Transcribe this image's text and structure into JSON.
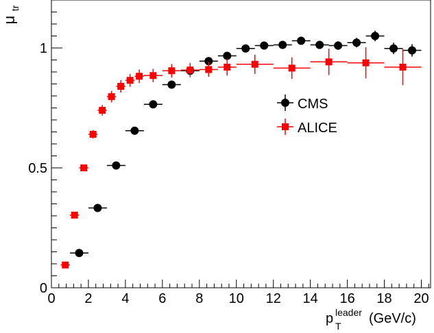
{
  "chart_data": {
    "type": "scatter",
    "xlim": [
      0,
      20.5
    ],
    "ylim": [
      0,
      1.2
    ],
    "x_ticks": [
      0,
      2,
      4,
      6,
      8,
      10,
      12,
      14,
      16,
      18,
      20
    ],
    "y_ticks": [
      0,
      0.5,
      1
    ],
    "xlabel": {
      "main": "p",
      "sub": "T",
      "sup": "leader",
      "unit": "(GeV/c)"
    },
    "ylabel": {
      "main": "μ",
      "sub": "tr"
    },
    "grid": false,
    "legend_position": "center-right",
    "series": [
      {
        "name": "CMS",
        "marker": "circle",
        "color": "#000000",
        "points": [
          {
            "x": 1.5,
            "y": 0.145,
            "xerr": 0.5,
            "yerr": 0.005
          },
          {
            "x": 2.5,
            "y": 0.333,
            "xerr": 0.5,
            "yerr": 0.005
          },
          {
            "x": 3.5,
            "y": 0.51,
            "xerr": 0.5,
            "yerr": 0.006
          },
          {
            "x": 4.5,
            "y": 0.655,
            "xerr": 0.5,
            "yerr": 0.007
          },
          {
            "x": 5.5,
            "y": 0.765,
            "xerr": 0.5,
            "yerr": 0.007
          },
          {
            "x": 6.5,
            "y": 0.847,
            "xerr": 0.5,
            "yerr": 0.008
          },
          {
            "x": 7.5,
            "y": 0.905,
            "xerr": 0.5,
            "yerr": 0.009
          },
          {
            "x": 8.5,
            "y": 0.945,
            "xerr": 0.5,
            "yerr": 0.01
          },
          {
            "x": 9.5,
            "y": 0.967,
            "xerr": 0.5,
            "yerr": 0.011
          },
          {
            "x": 10.5,
            "y": 0.998,
            "xerr": 0.5,
            "yerr": 0.012
          },
          {
            "x": 11.5,
            "y": 1.01,
            "xerr": 0.5,
            "yerr": 0.013
          },
          {
            "x": 12.5,
            "y": 1.013,
            "xerr": 0.5,
            "yerr": 0.014
          },
          {
            "x": 13.5,
            "y": 1.03,
            "xerr": 0.5,
            "yerr": 0.015
          },
          {
            "x": 14.5,
            "y": 1.013,
            "xerr": 0.5,
            "yerr": 0.017
          },
          {
            "x": 15.5,
            "y": 1.01,
            "xerr": 0.5,
            "yerr": 0.018
          },
          {
            "x": 16.5,
            "y": 1.022,
            "xerr": 0.5,
            "yerr": 0.02
          },
          {
            "x": 17.5,
            "y": 1.05,
            "xerr": 0.5,
            "yerr": 0.022
          },
          {
            "x": 18.5,
            "y": 0.998,
            "xerr": 0.5,
            "yerr": 0.024
          },
          {
            "x": 19.5,
            "y": 0.99,
            "xerr": 0.5,
            "yerr": 0.026
          }
        ]
      },
      {
        "name": "ALICE",
        "marker": "square",
        "color": "#ff0000",
        "points": [
          {
            "x": 0.75,
            "y": 0.095,
            "xerr": 0.25,
            "yerr": 0.005
          },
          {
            "x": 1.25,
            "y": 0.303,
            "xerr": 0.25,
            "yerr": 0.008
          },
          {
            "x": 1.75,
            "y": 0.5,
            "xerr": 0.25,
            "yerr": 0.014
          },
          {
            "x": 2.25,
            "y": 0.64,
            "xerr": 0.25,
            "yerr": 0.018
          },
          {
            "x": 2.75,
            "y": 0.74,
            "xerr": 0.25,
            "yerr": 0.022
          },
          {
            "x": 3.25,
            "y": 0.797,
            "xerr": 0.25,
            "yerr": 0.024
          },
          {
            "x": 3.75,
            "y": 0.84,
            "xerr": 0.25,
            "yerr": 0.026
          },
          {
            "x": 4.25,
            "y": 0.865,
            "xerr": 0.25,
            "yerr": 0.027
          },
          {
            "x": 4.75,
            "y": 0.882,
            "xerr": 0.25,
            "yerr": 0.028
          },
          {
            "x": 5.5,
            "y": 0.885,
            "xerr": 0.5,
            "yerr": 0.028
          },
          {
            "x": 6.5,
            "y": 0.905,
            "xerr": 0.5,
            "yerr": 0.028
          },
          {
            "x": 7.5,
            "y": 0.908,
            "xerr": 0.5,
            "yerr": 0.03
          },
          {
            "x": 8.5,
            "y": 0.91,
            "xerr": 0.5,
            "yerr": 0.03
          },
          {
            "x": 9.5,
            "y": 0.92,
            "xerr": 0.5,
            "yerr": 0.035
          },
          {
            "x": 11.0,
            "y": 0.932,
            "xerr": 1.0,
            "yerr": 0.04
          },
          {
            "x": 13.0,
            "y": 0.916,
            "xerr": 1.0,
            "yerr": 0.045
          },
          {
            "x": 15.0,
            "y": 0.942,
            "xerr": 1.0,
            "yerr": 0.055
          },
          {
            "x": 17.0,
            "y": 0.938,
            "xerr": 1.0,
            "yerr": 0.065
          },
          {
            "x": 19.0,
            "y": 0.92,
            "xerr": 1.0,
            "yerr": 0.075
          }
        ]
      }
    ]
  }
}
